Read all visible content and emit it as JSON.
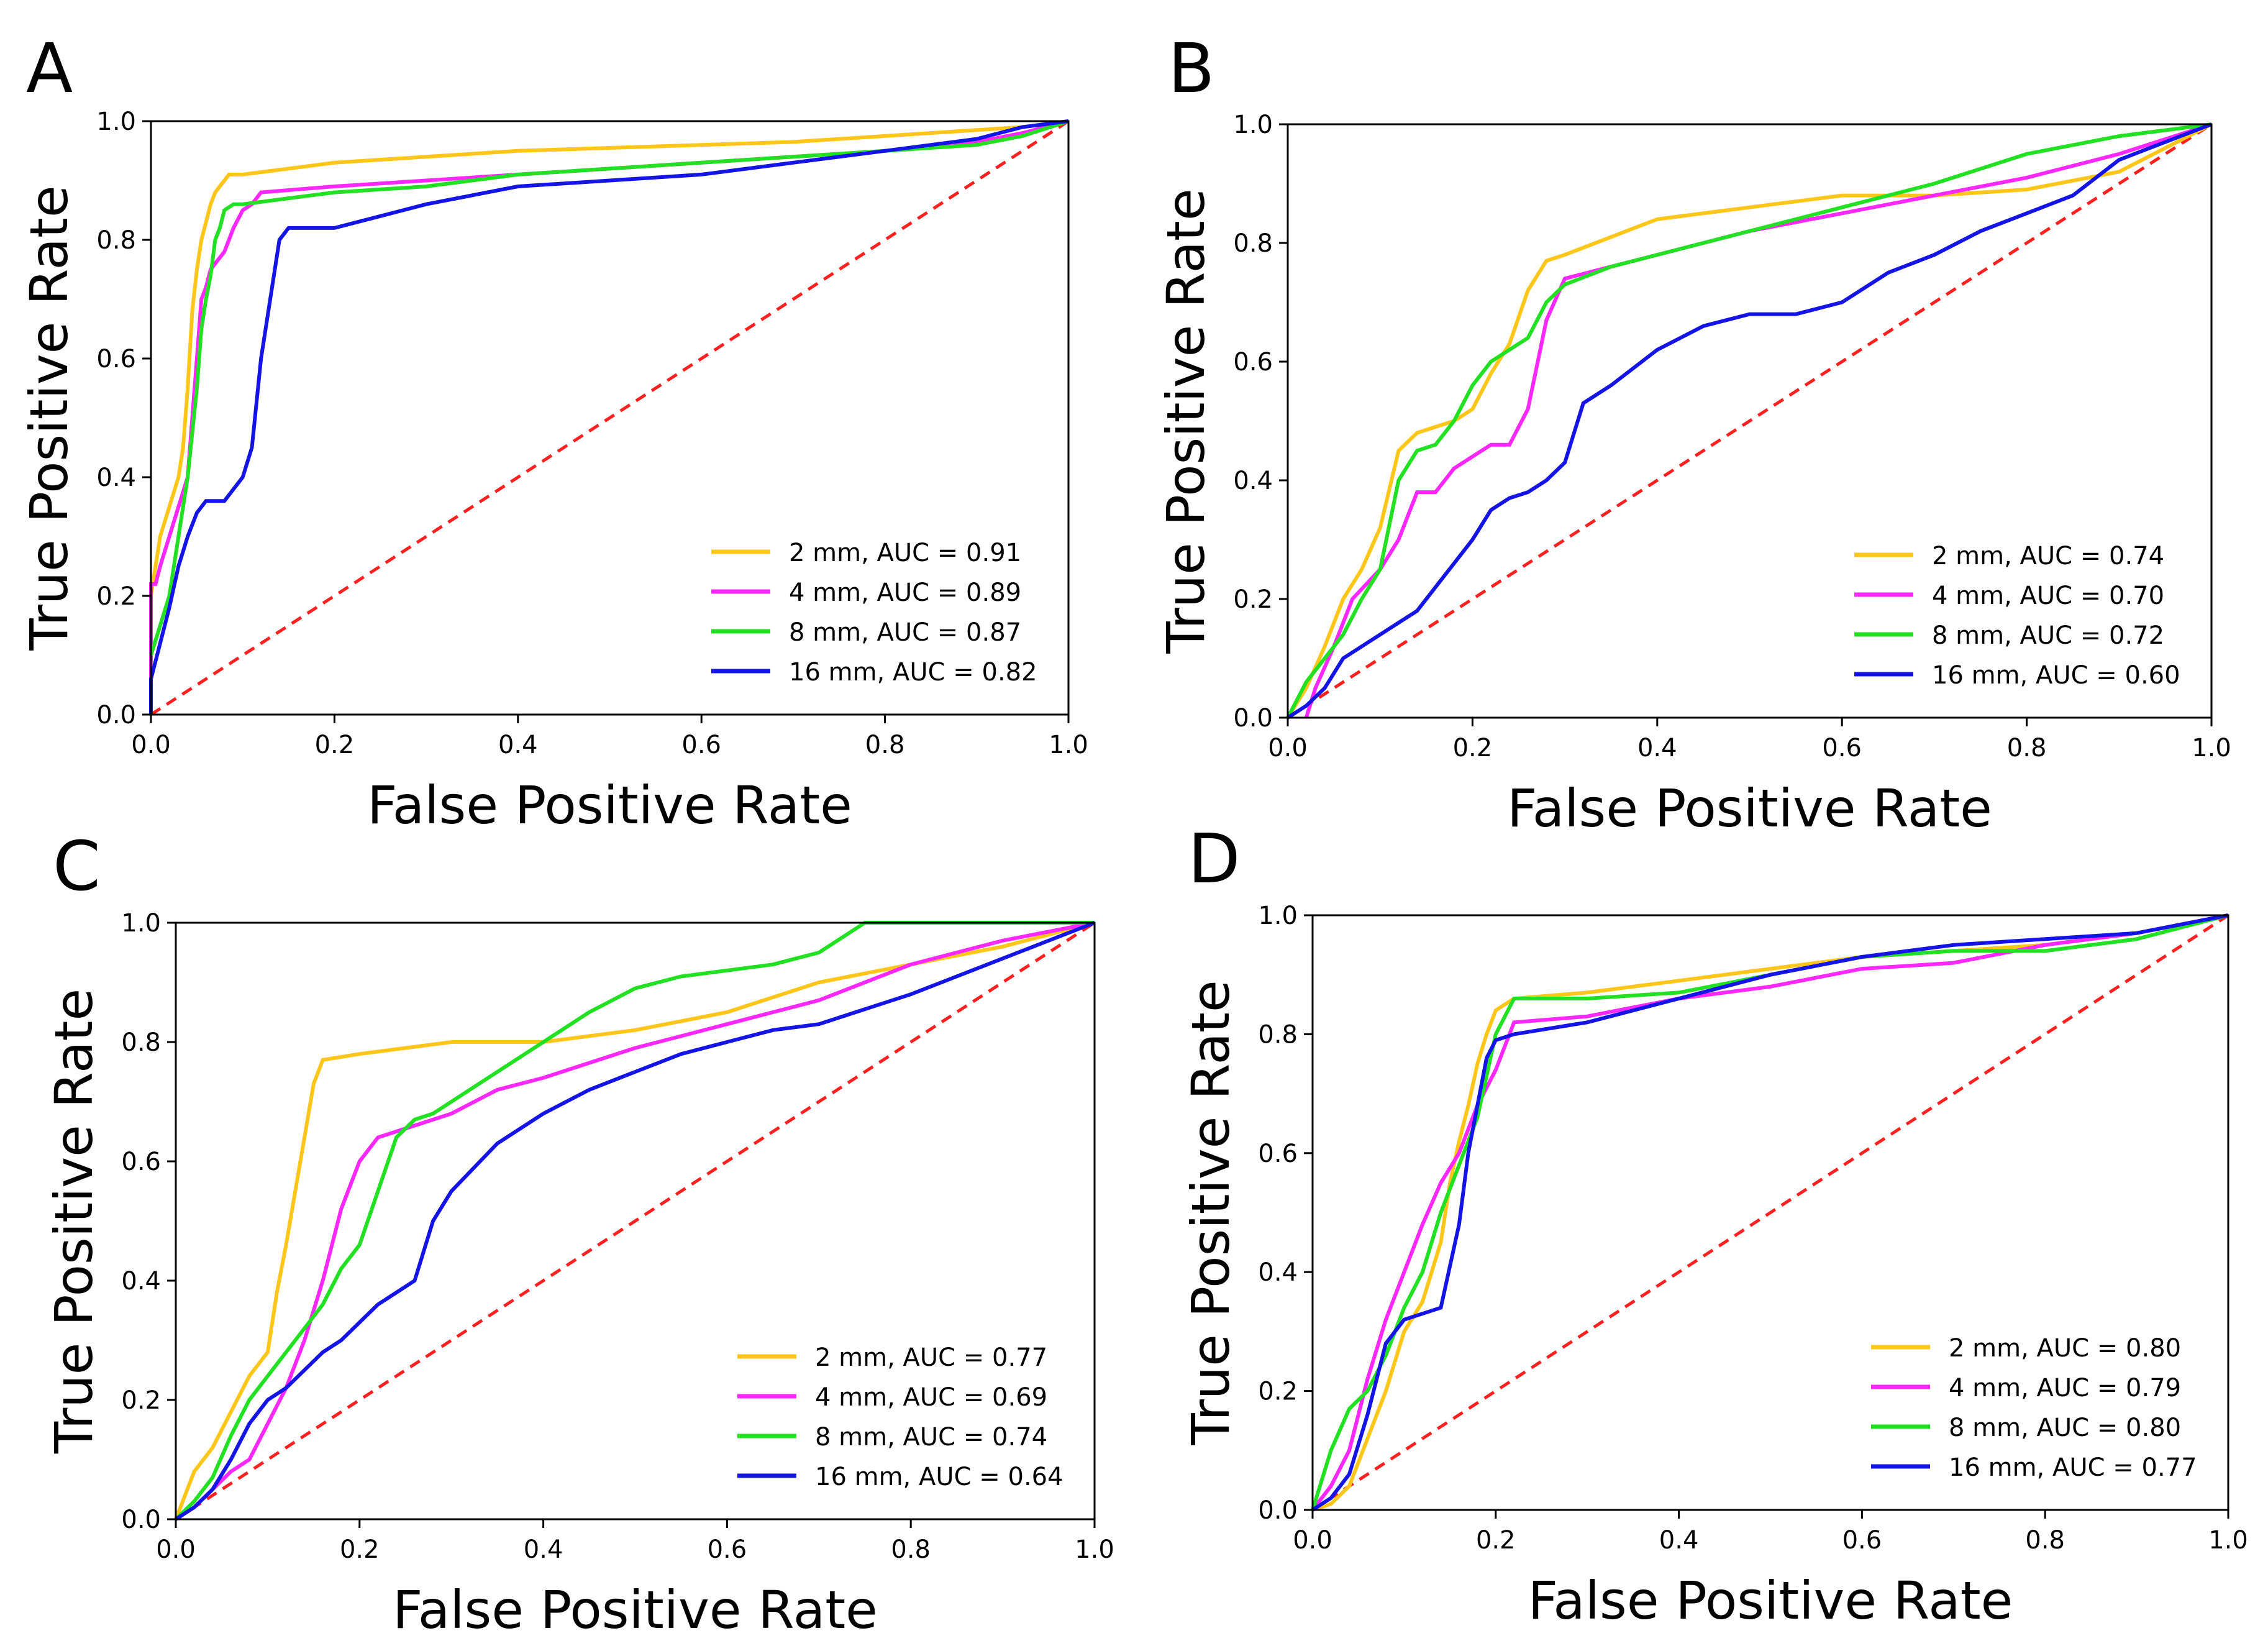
{
  "colors": {
    "c2mm": "#FFC61A",
    "c4mm": "#FF27FF",
    "c8mm": "#22E022",
    "c16mm": "#1414E6",
    "chance": "#FF2020"
  },
  "chart_data": [
    {
      "type": "line",
      "panel_label": "A",
      "xlabel": "False Positive Rate",
      "ylabel": "True Positive Rate",
      "xlim": [
        0,
        1
      ],
      "ylim": [
        0,
        1
      ],
      "xticks": [
        "0.0",
        "0.2",
        "0.4",
        "0.6",
        "0.8",
        "1.0"
      ],
      "yticks": [
        "0.0",
        "0.2",
        "0.4",
        "0.6",
        "0.8",
        "1.0"
      ],
      "legend_position": "lower-right",
      "chance_line": [
        [
          0,
          0
        ],
        [
          1,
          1
        ]
      ],
      "series": [
        {
          "name": "2 mm, AUC = 0.91",
          "color_key": "c2mm",
          "x": [
            0,
            0,
            0.01,
            0.02,
            0.03,
            0.035,
            0.04,
            0.045,
            0.05,
            0.055,
            0.06,
            0.065,
            0.07,
            0.075,
            0.08,
            0.085,
            0.1,
            0.15,
            0.2,
            0.3,
            0.4,
            0.5,
            0.6,
            0.7,
            0.8,
            0.9,
            0.95,
            1.0
          ],
          "y": [
            0,
            0.2,
            0.3,
            0.35,
            0.4,
            0.45,
            0.55,
            0.68,
            0.75,
            0.8,
            0.83,
            0.86,
            0.88,
            0.89,
            0.9,
            0.91,
            0.91,
            0.92,
            0.93,
            0.94,
            0.95,
            0.955,
            0.96,
            0.965,
            0.975,
            0.985,
            0.99,
            1.0
          ]
        },
        {
          "name": "4 mm, AUC = 0.89",
          "color_key": "c4mm",
          "x": [
            0,
            0,
            0.005,
            0.01,
            0.02,
            0.03,
            0.04,
            0.05,
            0.055,
            0.06,
            0.065,
            0.07,
            0.08,
            0.09,
            0.1,
            0.11,
            0.12,
            0.2,
            0.3,
            0.4,
            0.5,
            0.6,
            0.7,
            0.8,
            0.9,
            0.95,
            1.0
          ],
          "y": [
            0,
            0.22,
            0.22,
            0.25,
            0.3,
            0.35,
            0.4,
            0.6,
            0.7,
            0.72,
            0.75,
            0.76,
            0.78,
            0.82,
            0.85,
            0.86,
            0.88,
            0.89,
            0.9,
            0.91,
            0.92,
            0.93,
            0.94,
            0.95,
            0.965,
            0.98,
            1.0
          ]
        },
        {
          "name": "8 mm, AUC = 0.87",
          "color_key": "c8mm",
          "x": [
            0,
            0.01,
            0.02,
            0.03,
            0.04,
            0.05,
            0.055,
            0.06,
            0.065,
            0.07,
            0.075,
            0.08,
            0.09,
            0.1,
            0.15,
            0.2,
            0.3,
            0.4,
            0.5,
            0.6,
            0.7,
            0.8,
            0.9,
            0.95,
            1.0
          ],
          "y": [
            0.1,
            0.15,
            0.2,
            0.3,
            0.4,
            0.55,
            0.65,
            0.7,
            0.74,
            0.8,
            0.82,
            0.85,
            0.86,
            0.86,
            0.87,
            0.88,
            0.89,
            0.91,
            0.92,
            0.93,
            0.94,
            0.95,
            0.96,
            0.975,
            1.0
          ]
        },
        {
          "name": "16 mm, AUC = 0.82",
          "color_key": "c16mm",
          "x": [
            0,
            0,
            0.01,
            0.02,
            0.03,
            0.04,
            0.05,
            0.06,
            0.08,
            0.1,
            0.11,
            0.12,
            0.13,
            0.14,
            0.15,
            0.2,
            0.25,
            0.3,
            0.4,
            0.5,
            0.6,
            0.7,
            0.8,
            0.9,
            0.95,
            1.0
          ],
          "y": [
            0,
            0.06,
            0.12,
            0.18,
            0.25,
            0.3,
            0.34,
            0.36,
            0.36,
            0.4,
            0.45,
            0.6,
            0.7,
            0.8,
            0.82,
            0.82,
            0.84,
            0.86,
            0.89,
            0.9,
            0.91,
            0.93,
            0.95,
            0.97,
            0.99,
            1.0
          ]
        }
      ]
    },
    {
      "type": "line",
      "panel_label": "B",
      "xlabel": "False Positive Rate",
      "ylabel": "True Positive Rate",
      "xlim": [
        0,
        1
      ],
      "ylim": [
        0,
        1
      ],
      "xticks": [
        "0.0",
        "0.2",
        "0.4",
        "0.6",
        "0.8",
        "1.0"
      ],
      "yticks": [
        "0.0",
        "0.2",
        "0.4",
        "0.6",
        "0.8",
        "1.0"
      ],
      "legend_position": "lower-right",
      "chance_line": [
        [
          0,
          0
        ],
        [
          1,
          1
        ]
      ],
      "series": [
        {
          "name": "2 mm, AUC = 0.74",
          "color_key": "c2mm",
          "x": [
            0,
            0.02,
            0.04,
            0.06,
            0.08,
            0.1,
            0.12,
            0.14,
            0.16,
            0.18,
            0.2,
            0.22,
            0.24,
            0.26,
            0.28,
            0.3,
            0.35,
            0.4,
            0.5,
            0.6,
            0.7,
            0.8,
            0.9,
            1.0
          ],
          "y": [
            0,
            0.05,
            0.12,
            0.2,
            0.25,
            0.32,
            0.45,
            0.48,
            0.49,
            0.5,
            0.52,
            0.58,
            0.63,
            0.72,
            0.77,
            0.78,
            0.81,
            0.84,
            0.86,
            0.88,
            0.88,
            0.89,
            0.92,
            1.0
          ]
        },
        {
          "name": "4 mm, AUC = 0.70",
          "color_key": "c4mm",
          "x": [
            0.02,
            0.03,
            0.05,
            0.07,
            0.1,
            0.12,
            0.14,
            0.16,
            0.18,
            0.2,
            0.22,
            0.24,
            0.26,
            0.28,
            0.3,
            0.35,
            0.4,
            0.5,
            0.6,
            0.7,
            0.8,
            0.9,
            1.0
          ],
          "y": [
            0,
            0.05,
            0.12,
            0.2,
            0.25,
            0.3,
            0.38,
            0.38,
            0.42,
            0.44,
            0.46,
            0.46,
            0.52,
            0.67,
            0.74,
            0.76,
            0.78,
            0.82,
            0.85,
            0.88,
            0.91,
            0.95,
            1.0
          ]
        },
        {
          "name": "8 mm, AUC = 0.72",
          "color_key": "c8mm",
          "x": [
            0,
            0.02,
            0.04,
            0.06,
            0.08,
            0.1,
            0.12,
            0.14,
            0.16,
            0.18,
            0.2,
            0.22,
            0.24,
            0.26,
            0.28,
            0.3,
            0.35,
            0.4,
            0.5,
            0.6,
            0.7,
            0.8,
            0.9,
            1.0
          ],
          "y": [
            0,
            0.06,
            0.1,
            0.14,
            0.2,
            0.25,
            0.4,
            0.45,
            0.46,
            0.5,
            0.56,
            0.6,
            0.62,
            0.64,
            0.7,
            0.73,
            0.76,
            0.78,
            0.82,
            0.86,
            0.9,
            0.95,
            0.98,
            1.0
          ]
        },
        {
          "name": "16 mm, AUC = 0.60",
          "color_key": "c16mm",
          "x": [
            0,
            0.02,
            0.04,
            0.06,
            0.08,
            0.1,
            0.12,
            0.14,
            0.16,
            0.18,
            0.2,
            0.22,
            0.24,
            0.26,
            0.28,
            0.3,
            0.32,
            0.35,
            0.4,
            0.45,
            0.5,
            0.55,
            0.6,
            0.65,
            0.7,
            0.75,
            0.8,
            0.85,
            0.9,
            0.95,
            1.0
          ],
          "y": [
            0,
            0.02,
            0.05,
            0.1,
            0.12,
            0.14,
            0.16,
            0.18,
            0.22,
            0.26,
            0.3,
            0.35,
            0.37,
            0.38,
            0.4,
            0.43,
            0.53,
            0.56,
            0.62,
            0.66,
            0.68,
            0.68,
            0.7,
            0.75,
            0.78,
            0.82,
            0.85,
            0.88,
            0.94,
            0.97,
            1.0
          ]
        }
      ]
    },
    {
      "type": "line",
      "panel_label": "C",
      "xlabel": "False Positive Rate",
      "ylabel": "True Positive Rate",
      "xlim": [
        0,
        1
      ],
      "ylim": [
        0,
        1
      ],
      "xticks": [
        "0.0",
        "0.2",
        "0.4",
        "0.6",
        "0.8",
        "1.0"
      ],
      "yticks": [
        "0.0",
        "0.2",
        "0.4",
        "0.6",
        "0.8",
        "1.0"
      ],
      "legend_position": "lower-right",
      "chance_line": [
        [
          0,
          0
        ],
        [
          1,
          1
        ]
      ],
      "series": [
        {
          "name": "2 mm, AUC = 0.77",
          "color_key": "c2mm",
          "x": [
            0,
            0.02,
            0.04,
            0.06,
            0.08,
            0.1,
            0.11,
            0.12,
            0.13,
            0.14,
            0.15,
            0.16,
            0.2,
            0.3,
            0.4,
            0.5,
            0.6,
            0.7,
            0.8,
            0.9,
            1.0
          ],
          "y": [
            0,
            0.08,
            0.12,
            0.18,
            0.24,
            0.28,
            0.38,
            0.46,
            0.55,
            0.64,
            0.73,
            0.77,
            0.78,
            0.8,
            0.8,
            0.82,
            0.85,
            0.9,
            0.93,
            0.96,
            1.0
          ]
        },
        {
          "name": "4 mm, AUC = 0.69",
          "color_key": "c4mm",
          "x": [
            0,
            0.02,
            0.04,
            0.06,
            0.08,
            0.1,
            0.12,
            0.14,
            0.16,
            0.18,
            0.2,
            0.22,
            0.3,
            0.35,
            0.4,
            0.5,
            0.6,
            0.7,
            0.8,
            0.9,
            1.0
          ],
          "y": [
            0,
            0.02,
            0.05,
            0.08,
            0.1,
            0.16,
            0.22,
            0.3,
            0.4,
            0.52,
            0.6,
            0.64,
            0.68,
            0.72,
            0.74,
            0.79,
            0.83,
            0.87,
            0.93,
            0.97,
            1.0
          ]
        },
        {
          "name": "8 mm, AUC = 0.74",
          "color_key": "c8mm",
          "x": [
            0,
            0.02,
            0.04,
            0.06,
            0.08,
            0.1,
            0.12,
            0.14,
            0.16,
            0.18,
            0.2,
            0.22,
            0.24,
            0.26,
            0.28,
            0.3,
            0.35,
            0.4,
            0.45,
            0.5,
            0.55,
            0.6,
            0.65,
            0.7,
            0.75,
            1.0
          ],
          "y": [
            0,
            0.03,
            0.07,
            0.14,
            0.2,
            0.24,
            0.28,
            0.32,
            0.36,
            0.42,
            0.46,
            0.55,
            0.64,
            0.67,
            0.68,
            0.7,
            0.75,
            0.8,
            0.85,
            0.89,
            0.91,
            0.92,
            0.93,
            0.95,
            1.0,
            1.0
          ]
        },
        {
          "name": "16 mm, AUC = 0.64",
          "color_key": "c16mm",
          "x": [
            0,
            0.02,
            0.04,
            0.06,
            0.08,
            0.1,
            0.12,
            0.14,
            0.16,
            0.18,
            0.2,
            0.22,
            0.24,
            0.26,
            0.28,
            0.3,
            0.35,
            0.4,
            0.45,
            0.5,
            0.55,
            0.6,
            0.65,
            0.7,
            0.8,
            0.9,
            1.0
          ],
          "y": [
            0,
            0.02,
            0.05,
            0.1,
            0.16,
            0.2,
            0.22,
            0.25,
            0.28,
            0.3,
            0.33,
            0.36,
            0.38,
            0.4,
            0.5,
            0.55,
            0.63,
            0.68,
            0.72,
            0.75,
            0.78,
            0.8,
            0.82,
            0.83,
            0.88,
            0.94,
            1.0
          ]
        }
      ]
    },
    {
      "type": "line",
      "panel_label": "D",
      "xlabel": "False Positive Rate",
      "ylabel": "True Positive Rate",
      "xlim": [
        0,
        1
      ],
      "ylim": [
        0,
        1
      ],
      "xticks": [
        "0.0",
        "0.2",
        "0.4",
        "0.6",
        "0.8",
        "1.0"
      ],
      "yticks": [
        "0.0",
        "0.2",
        "0.4",
        "0.6",
        "0.8",
        "1.0"
      ],
      "legend_position": "lower-right",
      "chance_line": [
        [
          0,
          0
        ],
        [
          1,
          1
        ]
      ],
      "series": [
        {
          "name": "2 mm, AUC = 0.80",
          "color_key": "c2mm",
          "x": [
            0,
            0.02,
            0.04,
            0.06,
            0.08,
            0.1,
            0.12,
            0.14,
            0.15,
            0.16,
            0.17,
            0.18,
            0.19,
            0.2,
            0.22,
            0.3,
            0.4,
            0.5,
            0.6,
            0.7,
            0.8,
            0.9,
            1.0
          ],
          "y": [
            0,
            0.01,
            0.04,
            0.12,
            0.2,
            0.3,
            0.35,
            0.45,
            0.55,
            0.62,
            0.68,
            0.75,
            0.8,
            0.84,
            0.86,
            0.87,
            0.89,
            0.91,
            0.93,
            0.94,
            0.95,
            0.97,
            1.0
          ]
        },
        {
          "name": "4 mm, AUC = 0.79",
          "color_key": "c4mm",
          "x": [
            0,
            0.02,
            0.04,
            0.06,
            0.08,
            0.1,
            0.12,
            0.14,
            0.16,
            0.18,
            0.2,
            0.22,
            0.3,
            0.4,
            0.5,
            0.6,
            0.7,
            0.8,
            0.9,
            1.0
          ],
          "y": [
            0,
            0.04,
            0.1,
            0.22,
            0.32,
            0.4,
            0.48,
            0.55,
            0.6,
            0.68,
            0.74,
            0.82,
            0.83,
            0.86,
            0.88,
            0.91,
            0.92,
            0.95,
            0.97,
            1.0
          ]
        },
        {
          "name": "8 mm, AUC = 0.80",
          "color_key": "c8mm",
          "x": [
            0,
            0.02,
            0.04,
            0.06,
            0.08,
            0.1,
            0.12,
            0.14,
            0.16,
            0.18,
            0.2,
            0.22,
            0.3,
            0.4,
            0.5,
            0.6,
            0.7,
            0.8,
            0.9,
            1.0
          ],
          "y": [
            0,
            0.1,
            0.17,
            0.2,
            0.26,
            0.34,
            0.4,
            0.5,
            0.58,
            0.66,
            0.8,
            0.86,
            0.86,
            0.87,
            0.9,
            0.93,
            0.94,
            0.94,
            0.96,
            1.0
          ]
        },
        {
          "name": "16 mm, AUC = 0.77",
          "color_key": "c16mm",
          "x": [
            0,
            0.02,
            0.04,
            0.06,
            0.08,
            0.1,
            0.12,
            0.14,
            0.16,
            0.17,
            0.18,
            0.19,
            0.2,
            0.22,
            0.3,
            0.4,
            0.5,
            0.6,
            0.7,
            0.8,
            0.9,
            1.0
          ],
          "y": [
            0,
            0.02,
            0.06,
            0.16,
            0.28,
            0.32,
            0.33,
            0.34,
            0.48,
            0.6,
            0.68,
            0.76,
            0.79,
            0.8,
            0.82,
            0.86,
            0.9,
            0.93,
            0.95,
            0.96,
            0.97,
            1.0
          ]
        }
      ]
    }
  ]
}
